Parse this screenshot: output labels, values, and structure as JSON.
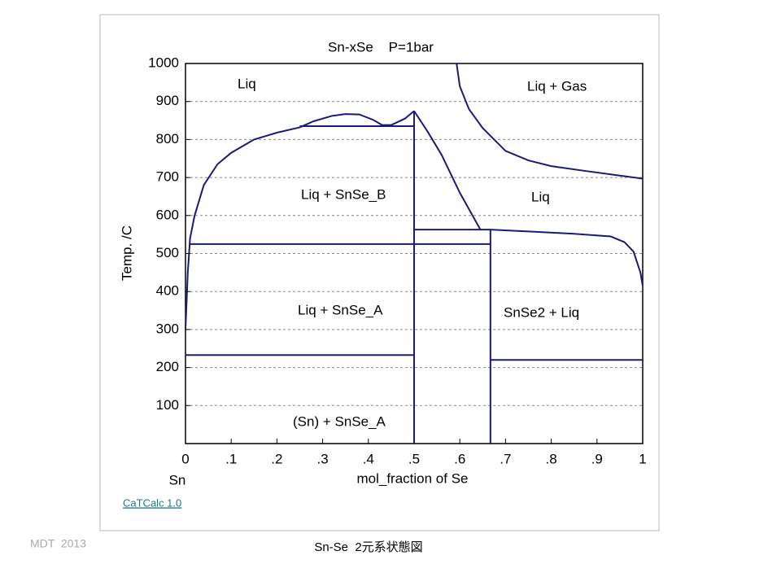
{
  "chart_data": {
    "type": "line",
    "title": "Sn-xSe    P=1bar",
    "xlabel": "mol_fraction of Se",
    "ylabel": "Temp. /C",
    "x_end_label": "Sn",
    "credit": "CaTCalc 1.0",
    "footer_left": "MDT  2013",
    "caption": "Sn-Se  2元系状態図",
    "xlim": [
      0,
      1
    ],
    "ylim": [
      0,
      1000
    ],
    "xticks": [
      0,
      {
        "value": 0.1,
        "label": ".1"
      },
      {
        "value": 0.2,
        "label": ".2"
      },
      {
        "value": 0.3,
        "label": ".3"
      },
      {
        "value": 0.4,
        "label": ".4"
      },
      {
        "value": 0.5,
        "label": ".5"
      },
      {
        "value": 0.6,
        "label": ".6"
      },
      {
        "value": 0.7,
        "label": ".7"
      },
      {
        "value": 0.8,
        "label": ".8"
      },
      {
        "value": 0.9,
        "label": ".9"
      },
      1
    ],
    "yticks": [
      100,
      200,
      300,
      400,
      500,
      600,
      700,
      800,
      900,
      1000
    ],
    "grid": true,
    "color": "#1a1a7a",
    "annotations": [
      "Liq",
      "Liq + Gas",
      "Liq + SnSe_B",
      "Liq",
      "Liq + SnSe_A",
      "SnSe2 + Liq",
      "(Sn) + SnSe_A"
    ],
    "series": [
      {
        "x": [
          0,
          0.005,
          0.01,
          0.02,
          0.04,
          0.07,
          0.1,
          0.15,
          0.2,
          0.25,
          0.28,
          0.32,
          0.35,
          0.38,
          0.41,
          0.43,
          0.45,
          0.48,
          0.5
        ],
        "values": [
          300,
          450,
          540,
          600,
          680,
          735,
          765,
          800,
          818,
          832,
          848,
          862,
          867,
          866,
          852,
          838,
          838,
          855,
          875
        ]
      },
      {
        "x": [
          0.5,
          0.53,
          0.56,
          0.6,
          0.645
        ],
        "values": [
          875,
          820,
          760,
          660,
          563
        ]
      },
      {
        "x": [
          0.25,
          0.5
        ],
        "values": [
          835,
          835
        ]
      },
      {
        "x": [
          0.5,
          0.667,
          0.75,
          0.85,
          0.93,
          0.96,
          0.98,
          0.995,
          1
        ],
        "values": [
          563,
          563,
          558,
          552,
          545,
          530,
          505,
          450,
          415
        ]
      },
      {
        "x": [
          0.008,
          0.667
        ],
        "values": [
          525,
          525
        ]
      },
      {
        "x": [
          0,
          0.5
        ],
        "values": [
          233,
          233
        ]
      },
      {
        "x": [
          0.5,
          0.5
        ],
        "values": [
          0,
          875
        ]
      },
      {
        "x": [
          0.667,
          0.667
        ],
        "values": [
          0,
          563
        ]
      },
      {
        "x": [
          0.667,
          1
        ],
        "values": [
          220,
          220
        ]
      },
      {
        "x": [
          0.593,
          0.6,
          0.62,
          0.65,
          0.7,
          0.75,
          0.8,
          0.87,
          0.95,
          1
        ],
        "values": [
          1000,
          940,
          880,
          830,
          770,
          745,
          730,
          718,
          705,
          697
        ]
      }
    ]
  }
}
